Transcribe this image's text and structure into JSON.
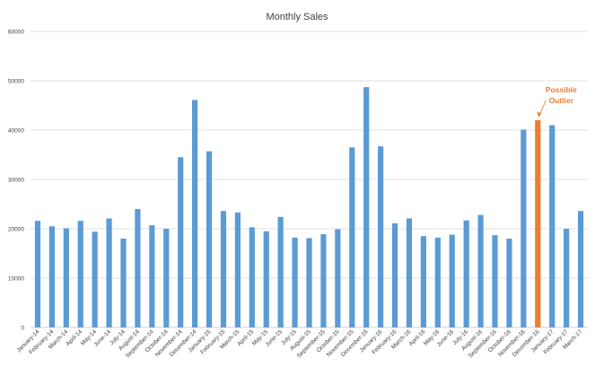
{
  "chart_data": {
    "type": "bar",
    "title": "Monthly Sales",
    "xlabel": "",
    "ylabel": "",
    "ylim": [
      0,
      60000
    ],
    "yticks": [
      0,
      10000,
      20000,
      30000,
      40000,
      50000,
      60000
    ],
    "grid": true,
    "categories": [
      "January-14",
      "February-14",
      "March-14",
      "April-14",
      "May-14",
      "June-14",
      "July-14",
      "August-14",
      "September-14",
      "October-14",
      "November-14",
      "December-14",
      "January-15",
      "February-15",
      "March-15",
      "April-15",
      "May-15",
      "June-15",
      "July-15",
      "August-15",
      "September-15",
      "October-15",
      "November-15",
      "December-15",
      "January-16",
      "February-16",
      "March-16",
      "April-16",
      "May-16",
      "June-16",
      "July-16",
      "August-16",
      "September-16",
      "October-16",
      "November-16",
      "December-16",
      "January-17",
      "February-17",
      "March-17"
    ],
    "values": [
      21600,
      20500,
      20100,
      21600,
      19400,
      22100,
      18000,
      24000,
      20700,
      20000,
      34500,
      46100,
      35700,
      23600,
      23300,
      20300,
      19500,
      22400,
      18200,
      18100,
      18900,
      19900,
      36500,
      48700,
      36700,
      21100,
      22100,
      18500,
      18200,
      18800,
      21700,
      22800,
      18700,
      18000,
      40100,
      42000,
      41000,
      20000,
      23600
    ],
    "highlight_index": 35,
    "colors": {
      "bar": "#5B9BD5",
      "highlight": "#ED7D31",
      "grid": "#D9D9D9",
      "axis": "#BFBFBF"
    },
    "annotation": {
      "lines": [
        "Possible",
        "Outlier"
      ],
      "target_index": 35
    }
  }
}
